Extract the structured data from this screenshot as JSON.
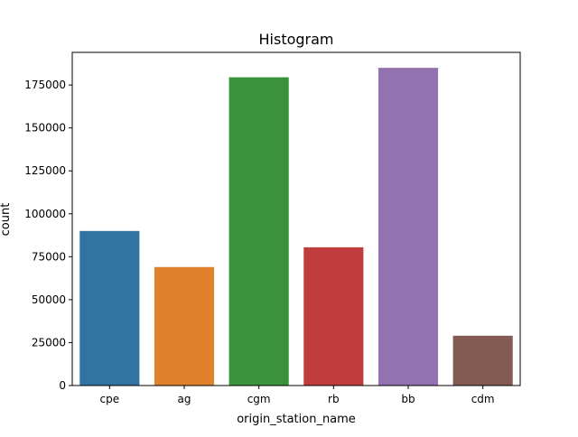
{
  "chart_data": {
    "type": "bar",
    "title": "Histogram",
    "xlabel": "origin_station_name",
    "ylabel": "count",
    "categories": [
      "cpe",
      "ag",
      "cgm",
      "rb",
      "bb",
      "cdm"
    ],
    "values": [
      90000,
      69000,
      179500,
      80500,
      185000,
      29000
    ],
    "colors": [
      "#3274a1",
      "#e1812c",
      "#3a923a",
      "#c03d3e",
      "#9372b2",
      "#845b53"
    ],
    "ylim": [
      0,
      194000
    ],
    "yticks": [
      0,
      25000,
      50000,
      75000,
      100000,
      125000,
      150000,
      175000
    ],
    "grid": false,
    "legend": "none"
  }
}
